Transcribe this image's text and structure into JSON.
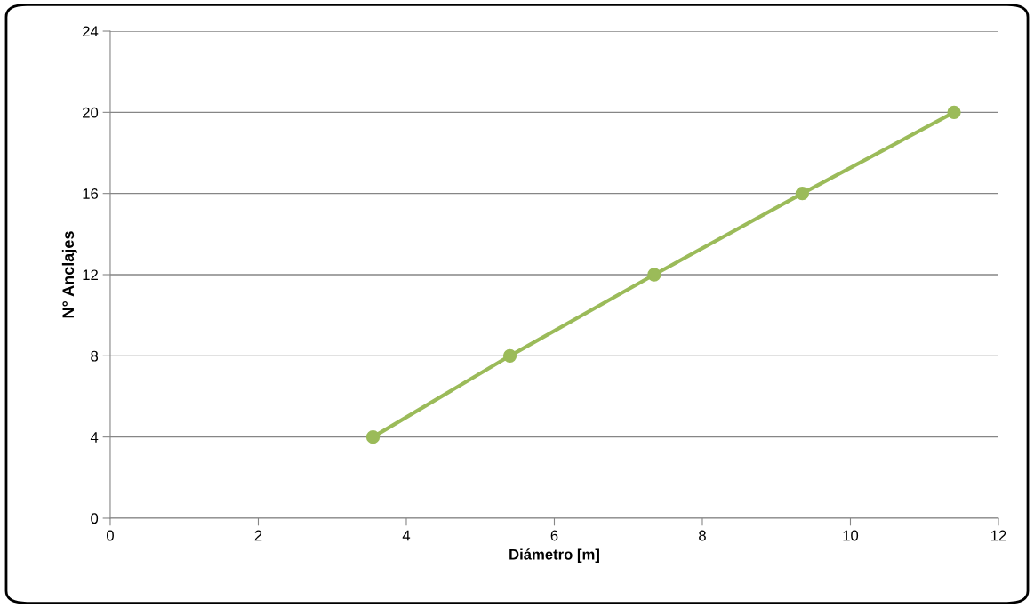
{
  "chart_data": {
    "type": "line",
    "xlabel": "Diámetro [m]",
    "ylabel": "N° Anclajes",
    "x": [
      3.55,
      5.4,
      7.35,
      9.35,
      11.4
    ],
    "series": [
      {
        "color": "#9bbb59",
        "values": [
          4,
          8,
          12,
          16,
          20
        ]
      }
    ],
    "xlim": [
      0,
      12
    ],
    "xticks": [
      0,
      2,
      4,
      6,
      8,
      10,
      12
    ],
    "ylim": [
      0,
      24
    ],
    "yticks": [
      0,
      4,
      8,
      12,
      16,
      20,
      24
    ],
    "grid": "y",
    "marker": "circle",
    "line_style": "solid",
    "legend": false
  }
}
